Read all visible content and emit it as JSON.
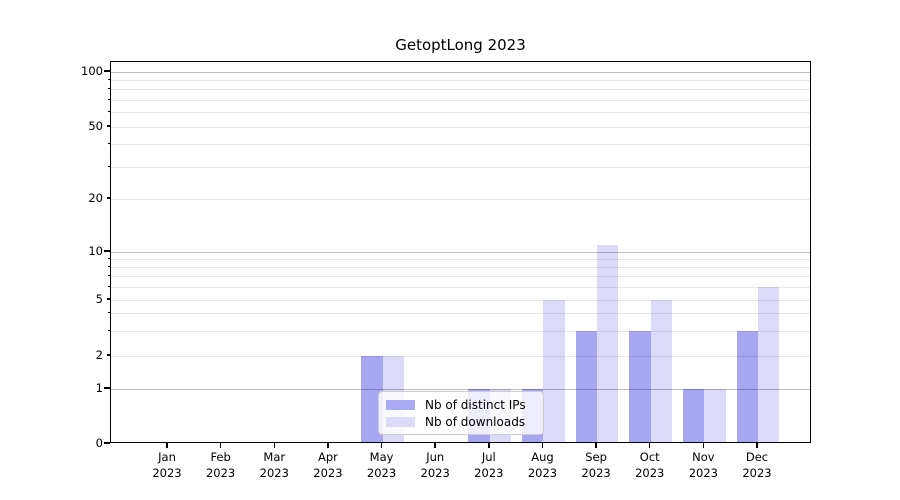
{
  "chart_data": {
    "type": "bar",
    "title": "GetoptLong 2023",
    "year": "2023",
    "months": [
      "Jan",
      "Feb",
      "Mar",
      "Apr",
      "May",
      "Jun",
      "Jul",
      "Aug",
      "Sep",
      "Oct",
      "Nov",
      "Dec"
    ],
    "categories": [
      "Jan 2023",
      "Feb 2023",
      "Mar 2023",
      "Apr 2023",
      "May 2023",
      "Jun 2023",
      "Jul 2023",
      "Aug 2023",
      "Sep 2023",
      "Oct 2023",
      "Nov 2023",
      "Dec 2023"
    ],
    "series": [
      {
        "name": "Nb of distinct IPs",
        "fill": "rgba(0,0,215,0.35)",
        "swatch": "#a9a9f4",
        "values": [
          0,
          0,
          0,
          0,
          2,
          0,
          1,
          1,
          3,
          3,
          1,
          3
        ]
      },
      {
        "name": "Nb of downloads",
        "fill": "rgba(0,0,215,0.14)",
        "swatch": "#dcdcf9",
        "values": [
          0,
          0,
          0,
          0,
          2,
          0,
          1,
          5,
          11,
          5,
          1,
          6
        ]
      }
    ],
    "xlabel": "",
    "ylabel": "",
    "y_axis": {
      "scale": "log-with-zero",
      "labeled_ticks": [
        0,
        1,
        2,
        5,
        10,
        20,
        50,
        100
      ],
      "major_ticks": [
        0,
        1,
        10,
        100
      ],
      "minor_labeled_ticks": [
        2,
        5,
        20,
        50
      ],
      "minor_unlabeled_gridlines": [
        3,
        4,
        6,
        7,
        8,
        9,
        30,
        40,
        60,
        70,
        80,
        90
      ],
      "ylim": [
        0,
        130
      ]
    },
    "grid": {
      "major_color": "#bdbdbd",
      "minor_color": "#e7e7e7",
      "enabled": true
    },
    "legend": {
      "position": "lower center",
      "border_color": "#cccccc"
    },
    "bar_layout": {
      "mode": "grouped",
      "bars_per_category": 2
    }
  }
}
